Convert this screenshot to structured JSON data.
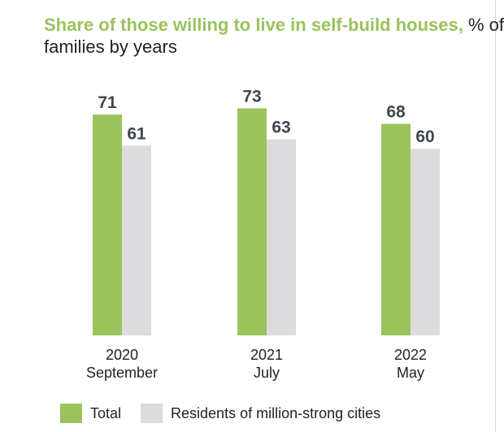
{
  "chart_data": {
    "type": "bar",
    "title": "Share of those willing to live in self-build houses,",
    "subtitle": "% of families by years",
    "categories": [
      {
        "year": "2020",
        "month": "September"
      },
      {
        "year": "2021",
        "month": "July"
      },
      {
        "year": "2022",
        "month": "May"
      }
    ],
    "series": [
      {
        "name": "Total",
        "color": "#9ac35b",
        "values": [
          71,
          73,
          68
        ]
      },
      {
        "name": "Residents of million-strong cities",
        "color": "#dcdcde",
        "values": [
          61,
          63,
          60
        ]
      }
    ],
    "ylim": [
      0,
      100
    ],
    "grid": false,
    "legend_position": "bottom"
  }
}
